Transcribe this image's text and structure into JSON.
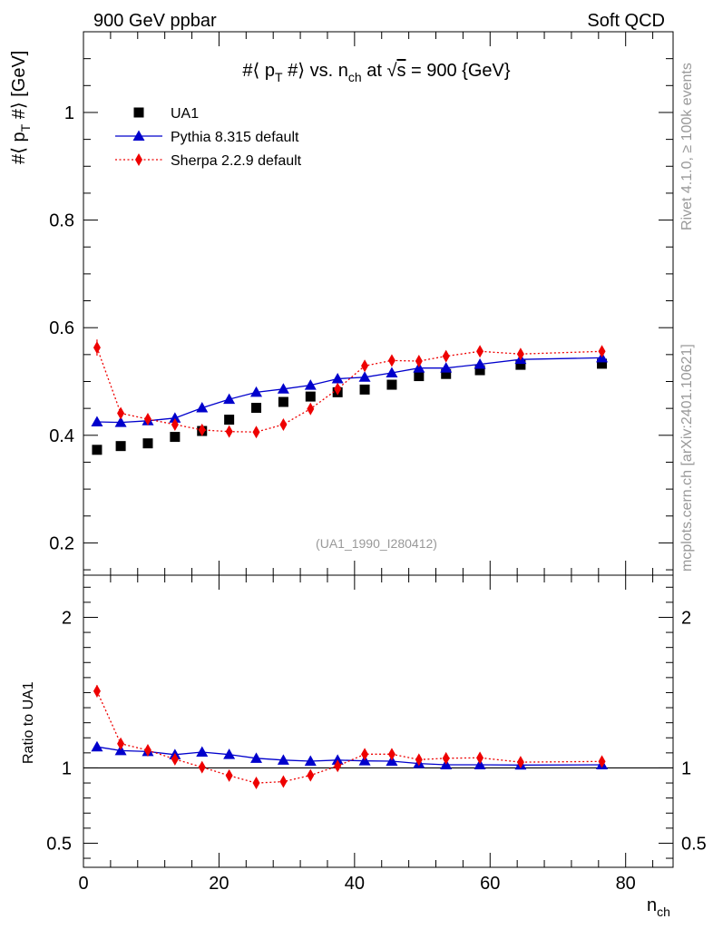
{
  "header": {
    "left": "900 GeV ppbar",
    "right": "Soft QCD"
  },
  "side": {
    "rivet": "Rivet 4.1.0, ≥ 100k events",
    "mcplots": "mcplots.cern.ch [arXiv:2401.10621]"
  },
  "main_title": {
    "part1": "#⟨ p",
    "sub1": "T",
    "part2": " #⟩ vs. n",
    "sub2": "ch",
    "part3": " at ",
    "sqrt": "√",
    "sqrt_arg": "s",
    "part4": " = 900 {GeV}"
  },
  "watermark": "(UA1_1990_I280412)",
  "colors": {
    "data": "#000000",
    "pythia": "#0000cc",
    "sherpa": "#ee0000",
    "side_text": "#999999",
    "watermark": "#999999"
  },
  "chart_data": [
    {
      "type": "scatter",
      "panel": "main",
      "ylabel": {
        "part1": "#⟨ p",
        "sub": "T",
        "part2": " #⟩ [GeV]"
      },
      "xlim": [
        0,
        87
      ],
      "ylim": [
        0.14,
        1.15
      ],
      "yticks": [
        {
          "value": 0.2,
          "label": "0.2"
        },
        {
          "value": 0.4,
          "label": "0.4"
        },
        {
          "value": 0.6,
          "label": "0.6"
        },
        {
          "value": 0.8,
          "label": "0.8"
        },
        {
          "value": 1.0,
          "label": "1"
        }
      ],
      "series": [
        {
          "name": "UA1",
          "style": "markers-square",
          "x": [
            2,
            5.5,
            9.5,
            13.5,
            17.5,
            21.5,
            25.5,
            29.5,
            33.5,
            37.5,
            41.5,
            45.5,
            49.5,
            53.5,
            58.5,
            64.5,
            76.5
          ],
          "y": [
            0.373,
            0.38,
            0.385,
            0.397,
            0.408,
            0.429,
            0.451,
            0.462,
            0.472,
            0.48,
            0.485,
            0.494,
            0.51,
            0.514,
            0.521,
            0.531,
            0.533
          ]
        },
        {
          "name": "Pythia 8.315 default",
          "style": "line-triangle",
          "x": [
            2,
            5.5,
            9.5,
            13.5,
            17.5,
            21.5,
            25.5,
            29.5,
            33.5,
            37.5,
            41.5,
            45.5,
            49.5,
            53.5,
            58.5,
            64.5,
            76.5
          ],
          "y": [
            0.425,
            0.424,
            0.427,
            0.432,
            0.451,
            0.467,
            0.48,
            0.486,
            0.493,
            0.505,
            0.508,
            0.516,
            0.525,
            0.525,
            0.532,
            0.541,
            0.544
          ]
        },
        {
          "name": "Sherpa 2.2.9 default",
          "style": "dotted-diamond",
          "x": [
            2,
            5.5,
            9.5,
            13.5,
            17.5,
            21.5,
            25.5,
            29.5,
            33.5,
            37.5,
            41.5,
            45.5,
            49.5,
            53.5,
            58.5,
            64.5,
            76.5
          ],
          "y": [
            0.563,
            0.441,
            0.43,
            0.42,
            0.41,
            0.407,
            0.406,
            0.42,
            0.449,
            0.486,
            0.529,
            0.539,
            0.538,
            0.547,
            0.556,
            0.551,
            0.556
          ],
          "yerr": [
            0.015,
            0.004,
            0.003,
            0.003,
            0.003,
            0.003,
            0.003,
            0.003,
            0.003,
            0.003,
            0.003,
            0.003,
            0.003,
            0.003,
            0.003,
            0.003,
            0.003
          ]
        }
      ],
      "legend": [
        {
          "label": "UA1",
          "series": 0
        },
        {
          "label": "Pythia 8.315 default",
          "series": 1
        },
        {
          "label": "Sherpa 2.2.9 default",
          "series": 2
        }
      ],
      "legend_position": "top-left"
    },
    {
      "type": "line",
      "panel": "ratio",
      "ylabel": "Ratio to UA1",
      "xlabel": {
        "text": "n",
        "sub": "ch"
      },
      "xlim": [
        0,
        87
      ],
      "ylim": [
        0.34,
        2.28
      ],
      "reference_line": 1,
      "xticks": [
        {
          "value": 0,
          "label": "0"
        },
        {
          "value": 20,
          "label": "20"
        },
        {
          "value": 40,
          "label": "40"
        },
        {
          "value": 60,
          "label": "60"
        },
        {
          "value": 80,
          "label": "80"
        }
      ],
      "yticks": [
        {
          "value": 0.5,
          "label": "0.5"
        },
        {
          "value": 1,
          "label": "1"
        },
        {
          "value": 2,
          "label": "2"
        }
      ],
      "series": [
        {
          "name": "Pythia 8.315 default",
          "style": "line-triangle",
          "x": [
            2,
            5.5,
            9.5,
            13.5,
            17.5,
            21.5,
            25.5,
            29.5,
            33.5,
            37.5,
            41.5,
            45.5,
            49.5,
            53.5,
            58.5,
            64.5,
            76.5
          ],
          "y": [
            1.14,
            1.115,
            1.109,
            1.088,
            1.105,
            1.089,
            1.064,
            1.052,
            1.045,
            1.052,
            1.047,
            1.045,
            1.029,
            1.021,
            1.021,
            1.019,
            1.021
          ]
        },
        {
          "name": "Sherpa 2.2.9 default",
          "style": "dotted-diamond",
          "x": [
            2,
            5.5,
            9.5,
            13.5,
            17.5,
            21.5,
            25.5,
            29.5,
            33.5,
            37.5,
            41.5,
            45.5,
            49.5,
            53.5,
            58.5,
            64.5,
            76.5
          ],
          "y": [
            1.51,
            1.161,
            1.117,
            1.058,
            1.005,
            0.949,
            0.9,
            0.909,
            0.951,
            1.013,
            1.091,
            1.091,
            1.055,
            1.064,
            1.067,
            1.038,
            1.043
          ],
          "yerr": [
            0.04,
            0.012,
            0.008,
            0.008,
            0.008,
            0.008,
            0.008,
            0.008,
            0.008,
            0.008,
            0.008,
            0.008,
            0.008,
            0.008,
            0.008,
            0.008,
            0.008
          ]
        }
      ]
    }
  ]
}
